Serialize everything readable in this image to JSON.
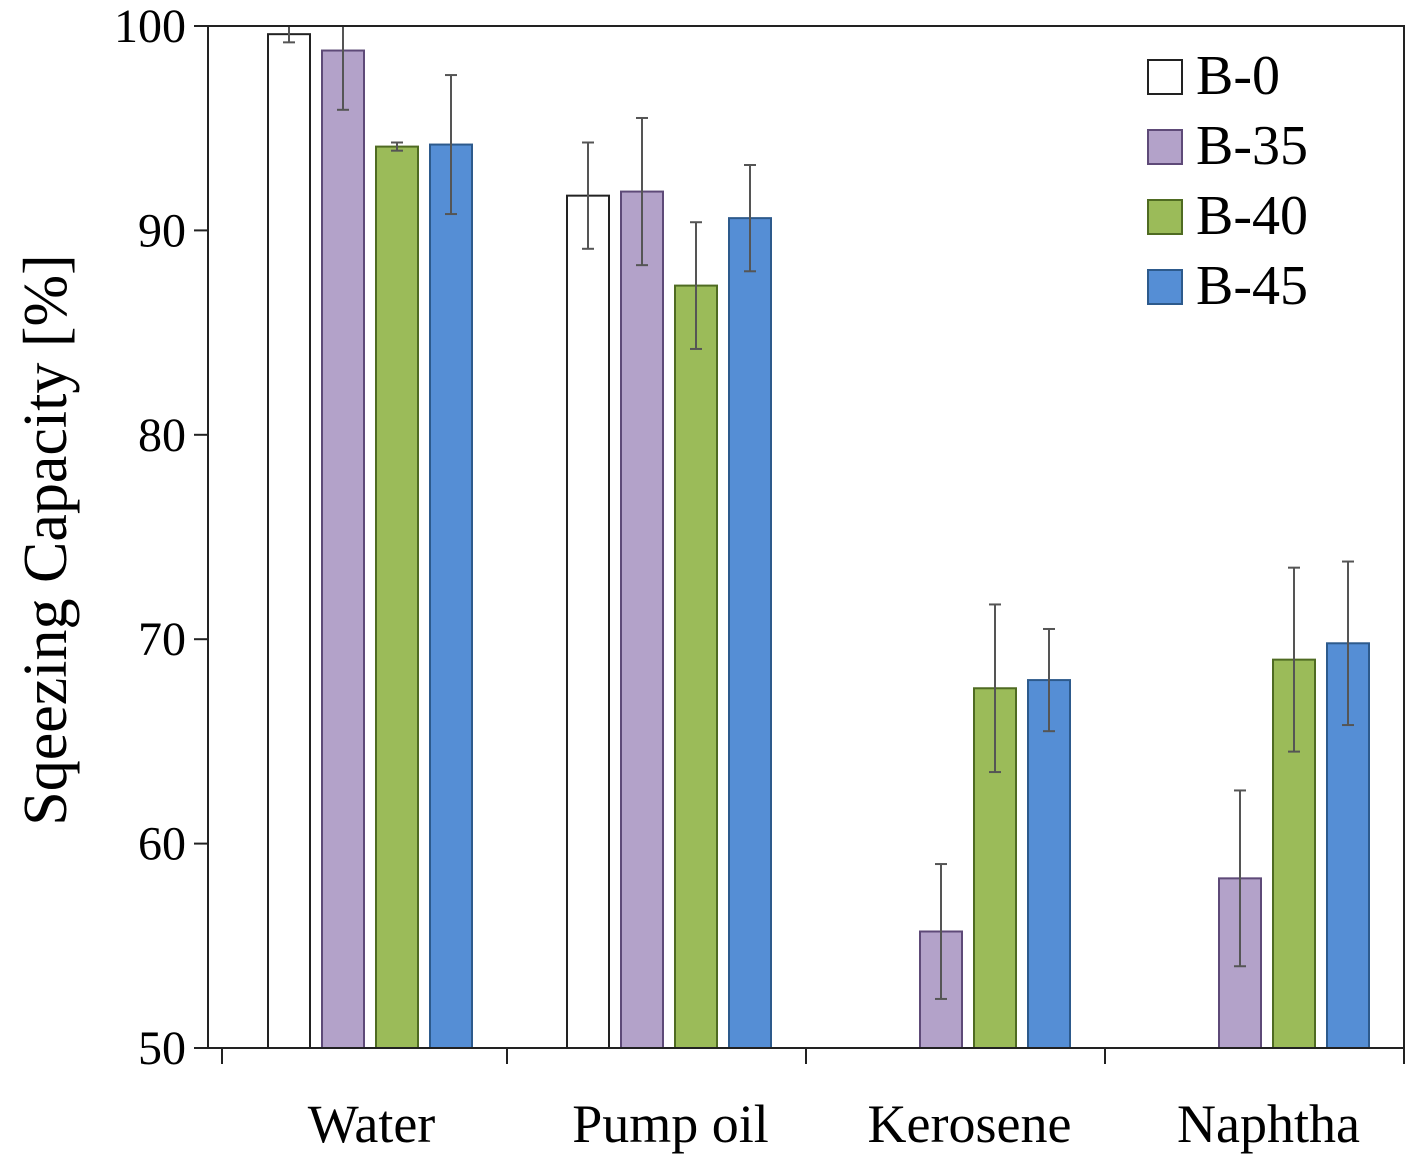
{
  "chart_data": {
    "type": "bar",
    "title": "",
    "xlabel": "",
    "ylabel": "Sqeezing Capacity [%]",
    "ylim": [
      50,
      100
    ],
    "yticks": [
      "50",
      "60",
      "70",
      "80",
      "90",
      "100"
    ],
    "grid": false,
    "legend_position": "top-right",
    "categories": [
      "Water",
      "Pump oil",
      "Kerosene",
      "Naphtha"
    ],
    "series": [
      {
        "name": "B-0",
        "color": "#ffffff",
        "stroke": "#222222",
        "values": [
          99.6,
          91.7,
          null,
          null
        ],
        "errors": [
          0.4,
          2.6,
          null,
          null
        ]
      },
      {
        "name": "B-35",
        "color": "#b3a2c9",
        "stroke": "#5e4a78",
        "values": [
          98.8,
          91.9,
          55.7,
          58.3
        ],
        "errors": [
          2.9,
          3.6,
          3.3,
          4.3
        ]
      },
      {
        "name": "B-40",
        "color": "#9bbb59",
        "stroke": "#4f6b22",
        "values": [
          94.1,
          87.3,
          67.6,
          69.0
        ],
        "errors": [
          0.2,
          3.1,
          4.1,
          4.5
        ]
      },
      {
        "name": "B-45",
        "color": "#558ed5",
        "stroke": "#2d5a8c",
        "values": [
          94.2,
          90.6,
          68.0,
          69.8
        ],
        "errors": [
          3.4,
          2.6,
          2.5,
          4.0
        ]
      }
    ]
  }
}
